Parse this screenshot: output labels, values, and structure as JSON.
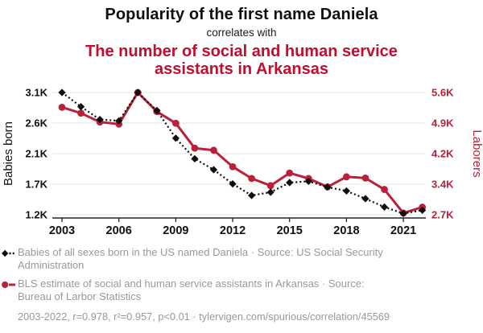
{
  "header": {
    "title": "Popularity of the first name Daniela",
    "subtitle": "correlates with",
    "correlate_title": "The number of social and human service assistants in Arkansas"
  },
  "colors": {
    "title_red": "#c10e2f",
    "line_red": "#ba2038",
    "line_black": "#0e0e0e",
    "muted_text": "#999999",
    "gridline": "#eaeaea",
    "axis": "#222222",
    "tick_text": "#111111"
  },
  "chart_data": {
    "type": "line",
    "title": "Popularity of the first name Daniela correlates with the number of social and human service assistants in Arkansas",
    "x": [
      2003,
      2004,
      2005,
      2006,
      2007,
      2008,
      2009,
      2010,
      2011,
      2012,
      2013,
      2014,
      2015,
      2016,
      2017,
      2018,
      2019,
      2020,
      2021,
      2022
    ],
    "x_tick_labels": [
      "2003",
      "2006",
      "2009",
      "2012",
      "2015",
      "2018",
      "2021"
    ],
    "series": [
      {
        "name": "Babies of all sexes born in the US named Daniela",
        "axis": "left",
        "style": "dashed",
        "marker": "diamond",
        "color_key": "line_black",
        "values": [
          3100,
          2880,
          2680,
          2660,
          3100,
          2820,
          2390,
          2070,
          1900,
          1680,
          1500,
          1550,
          1700,
          1720,
          1630,
          1570,
          1450,
          1320,
          1220,
          1270
        ]
      },
      {
        "name": "BLS estimate of social and human service assistants in Arkansas",
        "axis": "right",
        "style": "solid",
        "marker": "circle",
        "color_key": "line_red",
        "values": [
          5250,
          5110,
          4900,
          4850,
          5600,
          5150,
          4870,
          4280,
          4230,
          3840,
          3560,
          3390,
          3690,
          3560,
          3360,
          3600,
          3570,
          3300,
          2740,
          2880
        ]
      }
    ],
    "y_left": {
      "label": "Babies born",
      "min": 1200,
      "max": 3100,
      "ticks": [
        "1.2K",
        "1.7K",
        "2.1K",
        "2.6K",
        "3.1K"
      ]
    },
    "y_right": {
      "label": "Laborers",
      "min": 2700,
      "max": 5600,
      "ticks": [
        "2.7K",
        "3.4K",
        "4.2K",
        "4.9K",
        "5.6K"
      ]
    },
    "grid": true,
    "legend_position": "bottom"
  },
  "legend": {
    "items": [
      {
        "marker": "black-diamond-dashed",
        "text": "Babies of all sexes born in the US named Daniela · Source: US Social Security Administration"
      },
      {
        "marker": "red-circle-solid",
        "text": "BLS estimate of social and human service assistants in Arkansas · Source: Bureau of Larbor Statistics"
      }
    ]
  },
  "footer": {
    "text": "2003-2022, r=0.978, r²=0.957, p<0.01 · tylervigen.com/spurious/correlation/45569"
  }
}
